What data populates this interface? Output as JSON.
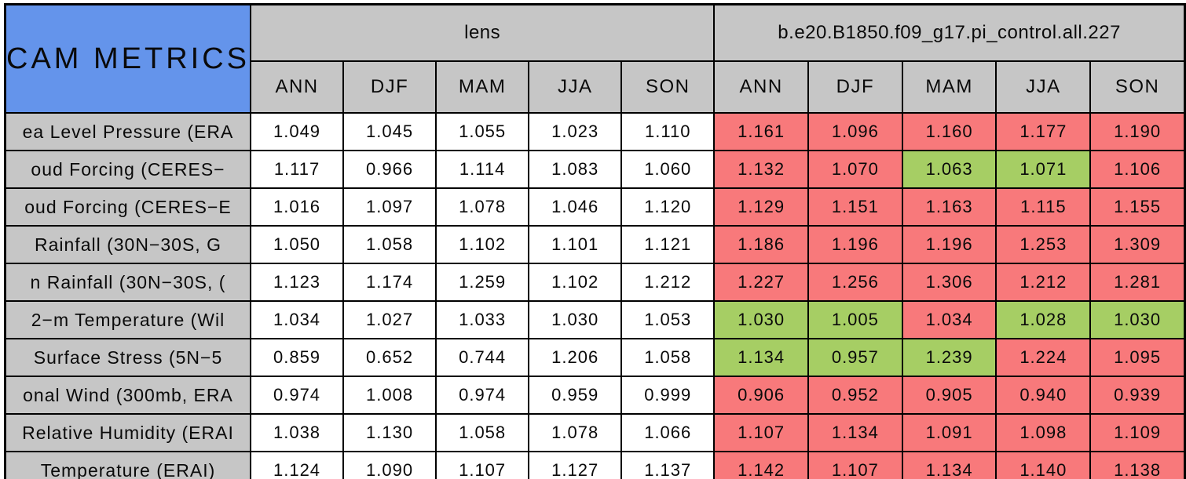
{
  "chart_data": {
    "type": "table",
    "title": "CAM METRICS",
    "column_groups": [
      "lens",
      "b.e20.B1850.f09_g17.pi_control.all.227"
    ],
    "columns": [
      "ANN",
      "DJF",
      "MAM",
      "JJA",
      "SON"
    ],
    "rows": [
      {
        "label": "ea Level Pressure (ERA",
        "lens": [
          "1.049",
          "1.045",
          "1.055",
          "1.023",
          "1.110"
        ],
        "control": [
          "1.161",
          "1.096",
          "1.160",
          "1.177",
          "1.190"
        ],
        "control_colors": [
          "red",
          "red",
          "red",
          "red",
          "red"
        ]
      },
      {
        "label": "oud Forcing (CERES−",
        "lens": [
          "1.117",
          "0.966",
          "1.114",
          "1.083",
          "1.060"
        ],
        "control": [
          "1.132",
          "1.070",
          "1.063",
          "1.071",
          "1.106"
        ],
        "control_colors": [
          "red",
          "red",
          "green",
          "green",
          "red"
        ]
      },
      {
        "label": "oud Forcing (CERES−E",
        "lens": [
          "1.016",
          "1.097",
          "1.078",
          "1.046",
          "1.120"
        ],
        "control": [
          "1.129",
          "1.151",
          "1.163",
          "1.115",
          "1.155"
        ],
        "control_colors": [
          "red",
          "red",
          "red",
          "red",
          "red"
        ]
      },
      {
        "label": "Rainfall (30N−30S, G",
        "lens": [
          "1.050",
          "1.058",
          "1.102",
          "1.101",
          "1.121"
        ],
        "control": [
          "1.186",
          "1.196",
          "1.196",
          "1.253",
          "1.309"
        ],
        "control_colors": [
          "red",
          "red",
          "red",
          "red",
          "red"
        ]
      },
      {
        "label": "n Rainfall (30N−30S, (",
        "lens": [
          "1.123",
          "1.174",
          "1.259",
          "1.102",
          "1.212"
        ],
        "control": [
          "1.227",
          "1.256",
          "1.306",
          "1.212",
          "1.281"
        ],
        "control_colors": [
          "red",
          "red",
          "red",
          "red",
          "red"
        ]
      },
      {
        "label": "2−m Temperature (Wil",
        "lens": [
          "1.034",
          "1.027",
          "1.033",
          "1.030",
          "1.053"
        ],
        "control": [
          "1.030",
          "1.005",
          "1.034",
          "1.028",
          "1.030"
        ],
        "control_colors": [
          "green",
          "green",
          "red",
          "green",
          "green"
        ]
      },
      {
        "label": "Surface Stress (5N−5",
        "lens": [
          "0.859",
          "0.652",
          "0.744",
          "1.206",
          "1.058"
        ],
        "control": [
          "1.134",
          "0.957",
          "1.239",
          "1.224",
          "1.095"
        ],
        "control_colors": [
          "green",
          "green",
          "green",
          "red",
          "red"
        ]
      },
      {
        "label": "onal Wind (300mb, ERA",
        "lens": [
          "0.974",
          "1.008",
          "0.974",
          "0.959",
          "0.999"
        ],
        "control": [
          "0.906",
          "0.952",
          "0.905",
          "0.940",
          "0.939"
        ],
        "control_colors": [
          "red",
          "red",
          "red",
          "red",
          "red"
        ]
      },
      {
        "label": "Relative Humidity (ERAI",
        "lens": [
          "1.038",
          "1.130",
          "1.058",
          "1.078",
          "1.066"
        ],
        "control": [
          "1.107",
          "1.134",
          "1.091",
          "1.098",
          "1.109"
        ],
        "control_colors": [
          "red",
          "red",
          "red",
          "red",
          "red"
        ]
      },
      {
        "label": "Temperature (ERAI)",
        "lens": [
          "1.124",
          "1.090",
          "1.107",
          "1.127",
          "1.137"
        ],
        "control": [
          "1.142",
          "1.107",
          "1.134",
          "1.140",
          "1.138"
        ],
        "control_colors": [
          "red",
          "red",
          "red",
          "red",
          "red"
        ]
      }
    ],
    "colors": {
      "title_bg": "#6494EB",
      "header_bg": "#C6C6C6",
      "cell_red": "#F8797B",
      "cell_green": "#A6CE64",
      "lens_bg": "#FFFFFF",
      "border": "#000000"
    }
  }
}
